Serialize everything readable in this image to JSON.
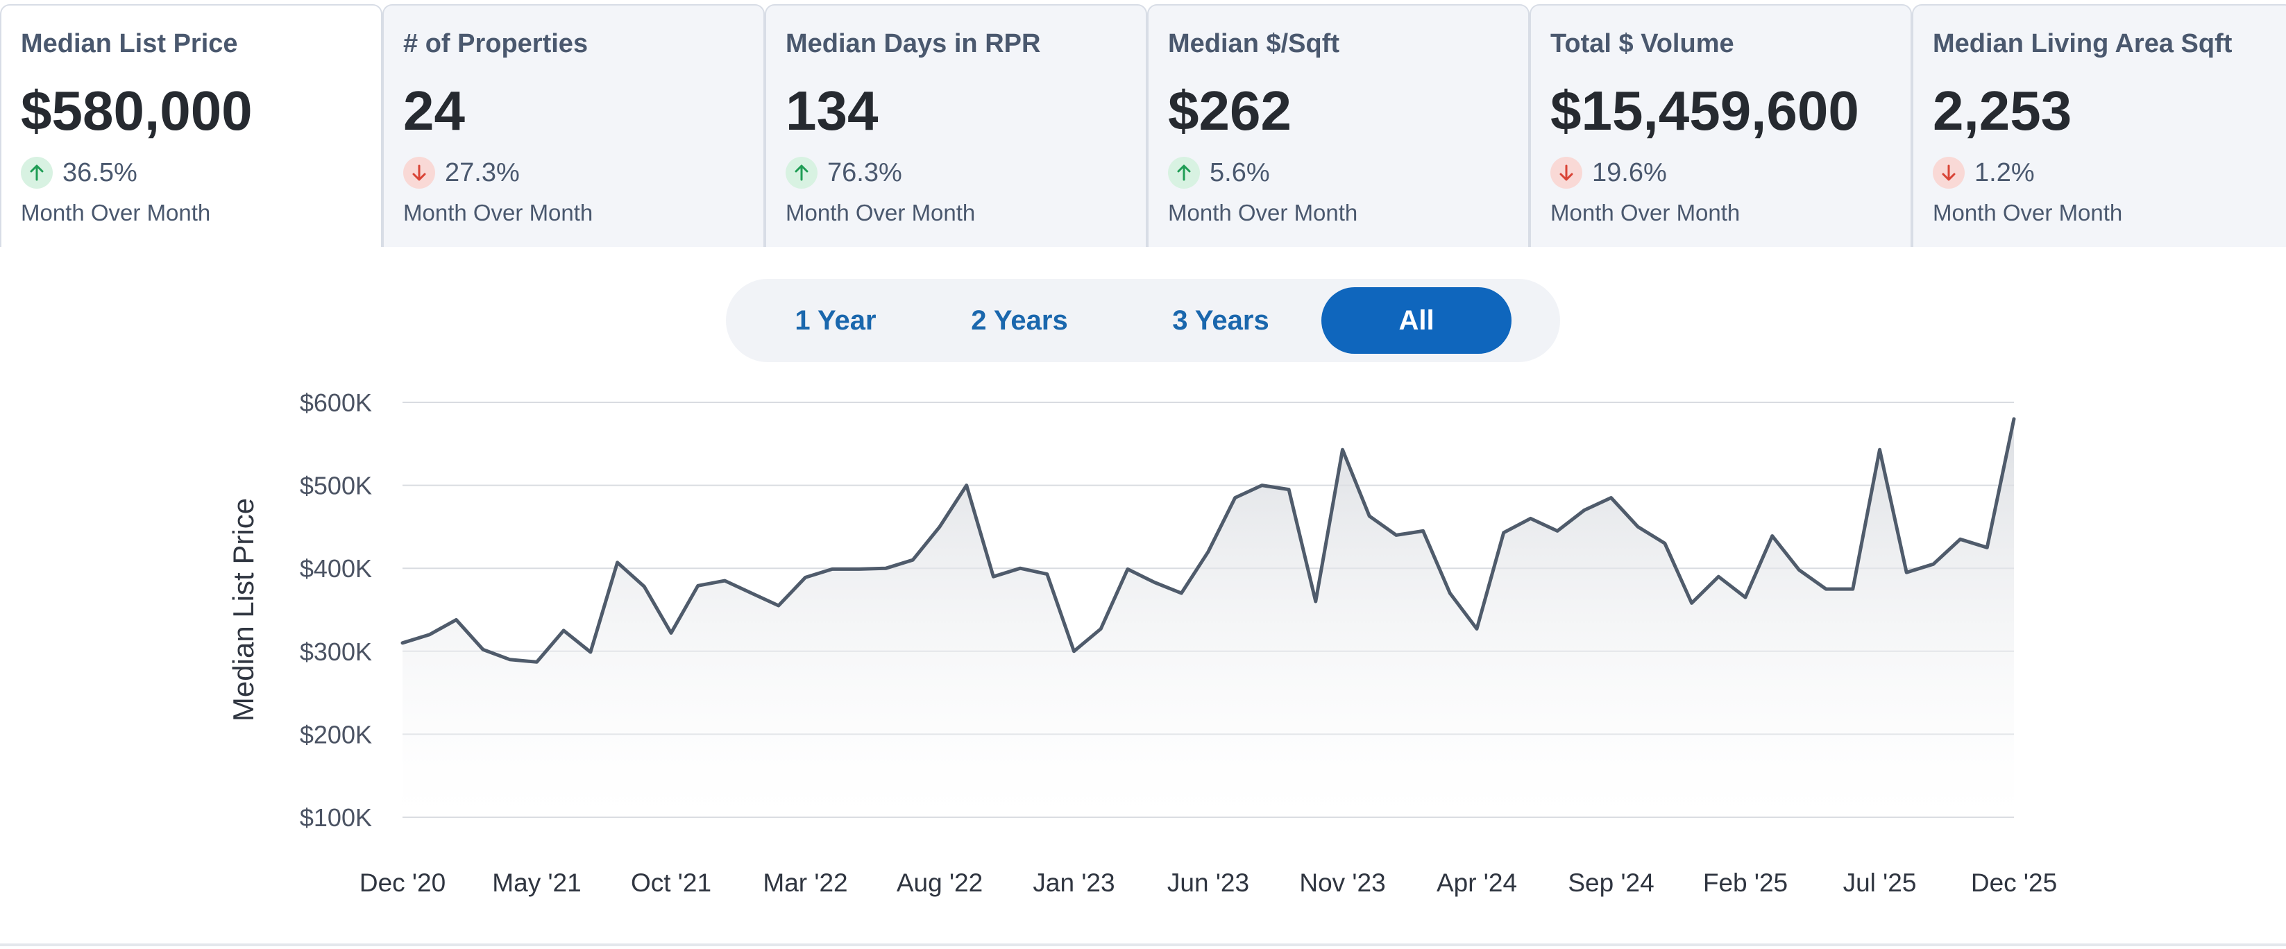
{
  "stats": [
    {
      "title": "Median List Price",
      "value": "$580,000",
      "direction": "up",
      "change": "36.5%",
      "period": "Month Over Month"
    },
    {
      "title": "# of Properties",
      "value": "24",
      "direction": "down",
      "change": "27.3%",
      "period": "Month Over Month"
    },
    {
      "title": "Median Days in RPR",
      "value": "134",
      "direction": "up",
      "change": "76.3%",
      "period": "Month Over Month"
    },
    {
      "title": "Median $/Sqft",
      "value": "$262",
      "direction": "up",
      "change": "5.6%",
      "period": "Month Over Month"
    },
    {
      "title": "Total $ Volume",
      "value": "$15,459,600",
      "direction": "down",
      "change": "19.6%",
      "period": "Month Over Month"
    },
    {
      "title": "Median Living Area Sqft",
      "value": "2,253",
      "direction": "down",
      "change": "1.2%",
      "period": "Month Over Month"
    }
  ],
  "range": {
    "options": [
      "1 Year",
      "2 Years",
      "3 Years",
      "All"
    ],
    "selected": "All"
  },
  "colors": {
    "accent": "#0f66bd",
    "up": "#1f9d55",
    "down": "#d94436",
    "line": "#4f5b6b"
  },
  "chart_data": {
    "type": "area",
    "ylabel": "Median List Price",
    "xlabel": "",
    "ylim": [
      100000,
      600000
    ],
    "y_ticks": [
      600000,
      500000,
      400000,
      300000,
      200000,
      100000
    ],
    "y_tick_labels": [
      "$600K",
      "$500K",
      "$400K",
      "$300K",
      "$200K",
      "$100K"
    ],
    "x_tick_labels": [
      "Dec '20",
      "May '21",
      "Oct '21",
      "Mar '22",
      "Aug '22",
      "Jan '23",
      "Jun '23",
      "Nov '23",
      "Apr '24",
      "Sep '24",
      "Feb '25",
      "Jul '25",
      "Dec '25"
    ],
    "grid": true,
    "x": [
      "Dec '20",
      "Jan '21",
      "Feb '21",
      "Mar '21",
      "Apr '21",
      "May '21",
      "Jun '21",
      "Jul '21",
      "Aug '21",
      "Sep '21",
      "Oct '21",
      "Nov '21",
      "Dec '21",
      "Jan '22",
      "Feb '22",
      "Mar '22",
      "Apr '22",
      "May '22",
      "Jun '22",
      "Jul '22",
      "Aug '22",
      "Sep '22",
      "Oct '22",
      "Nov '22",
      "Dec '22",
      "Jan '23",
      "Feb '23",
      "Mar '23",
      "Apr '23",
      "May '23",
      "Jun '23",
      "Jul '23",
      "Aug '23",
      "Sep '23",
      "Oct '23",
      "Nov '23",
      "Dec '23",
      "Jan '24",
      "Feb '24",
      "Mar '24",
      "Apr '24",
      "May '24",
      "Jun '24",
      "Jul '24",
      "Aug '24",
      "Sep '24",
      "Oct '24",
      "Nov '24",
      "Dec '24",
      "Jan '25",
      "Feb '25",
      "Mar '25",
      "Apr '25",
      "May '25",
      "Jun '25",
      "Jul '25",
      "Aug '25",
      "Sep '25",
      "Oct '25",
      "Nov '25",
      "Dec '25"
    ],
    "values": [
      310000,
      320000,
      338000,
      302000,
      290000,
      287000,
      325000,
      299000,
      407000,
      378000,
      322000,
      379000,
      385000,
      370000,
      355000,
      389000,
      399000,
      399000,
      400000,
      410000,
      450000,
      500000,
      390000,
      400000,
      393000,
      300000,
      327000,
      399000,
      383000,
      370000,
      420000,
      485000,
      500000,
      495000,
      360000,
      543000,
      463000,
      440000,
      445000,
      370000,
      327000,
      443000,
      460000,
      445000,
      470000,
      485000,
      450000,
      430000,
      358000,
      390000,
      365000,
      439000,
      398000,
      375000,
      375000,
      543000,
      395000,
      405000,
      435000,
      425000,
      580000
    ]
  }
}
